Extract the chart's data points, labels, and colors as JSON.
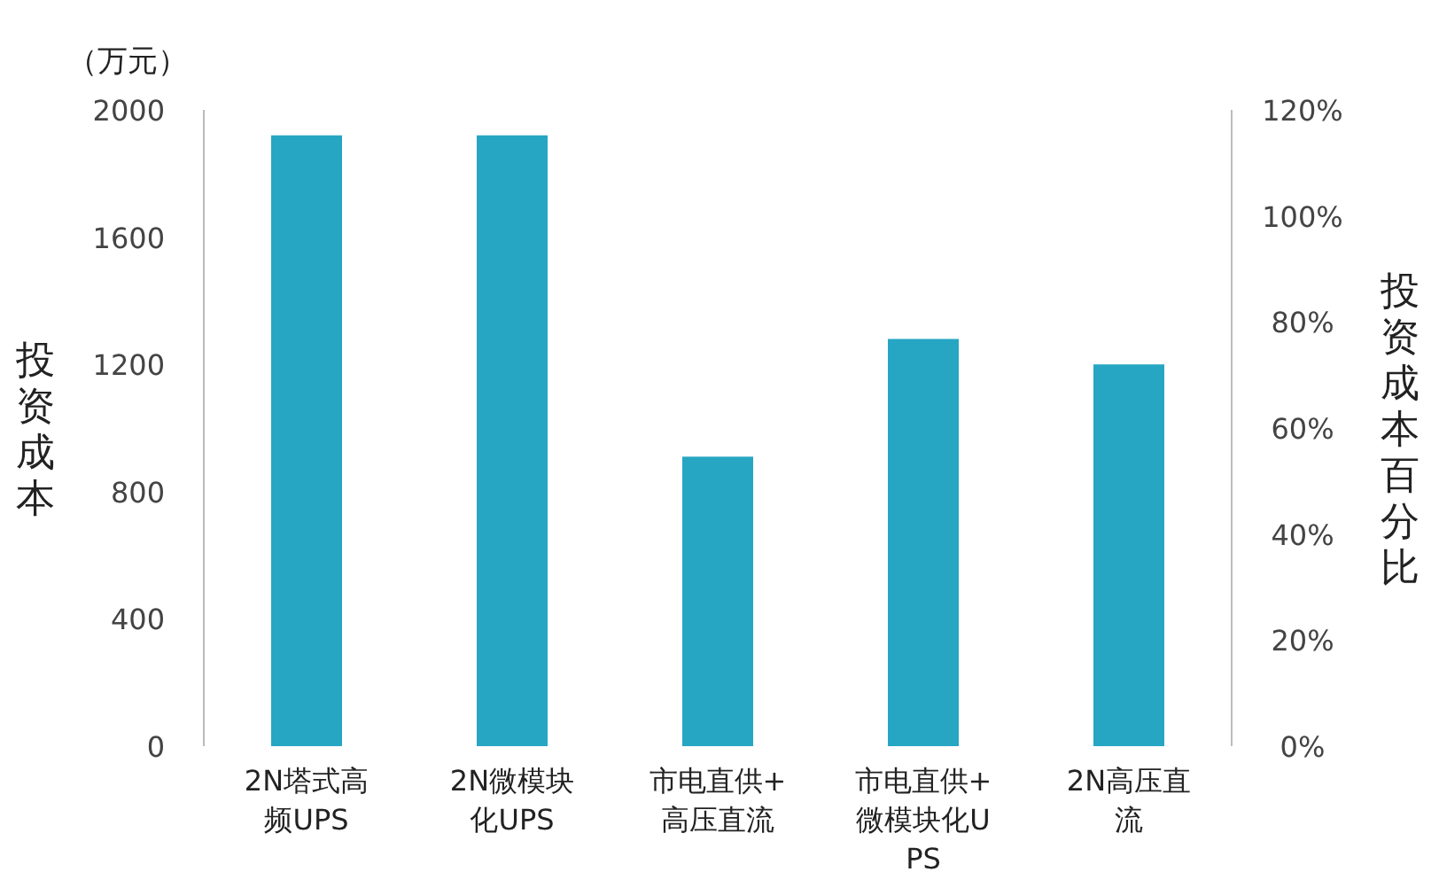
{
  "chart_data": {
    "type": "bar",
    "ylabel": "投资成本",
    "y2label": "投资成本百分比",
    "annotations": [
      "（万元）"
    ],
    "categories": [
      "2N塔式高频UPS",
      "2N微模块化UPS",
      "市电直供+高压直流",
      "市电直供+微模块化UPS",
      "2N高压直流"
    ],
    "series": [
      {
        "color": "#27a6c4",
        "values": [
          1920,
          1920,
          910,
          1280,
          1200
        ]
      }
    ],
    "ylim": [
      0,
      2000
    ],
    "yticks": [
      0,
      400,
      800,
      1200,
      1600,
      2000
    ],
    "y2lim": [
      0,
      1.2
    ],
    "y2ticks": [
      {
        "value": 0,
        "label": "0%"
      },
      {
        "value": 0.2,
        "label": "20%"
      },
      {
        "value": 0.4,
        "label": "40%"
      },
      {
        "value": 0.6,
        "label": "60%"
      },
      {
        "value": 0.8,
        "label": "80%"
      },
      {
        "value": 1.0,
        "label": "100%"
      },
      {
        "value": 1.2,
        "label": "120%"
      }
    ],
    "grid": false
  }
}
